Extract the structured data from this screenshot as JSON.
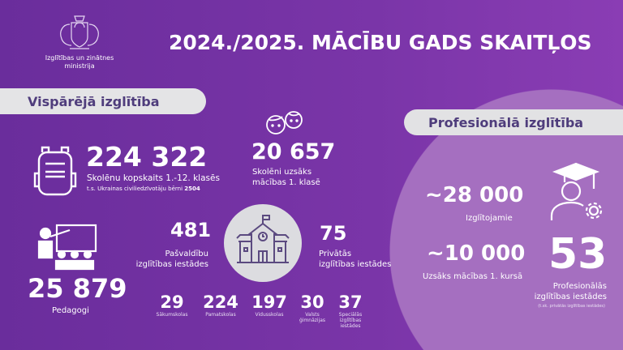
{
  "header": {
    "logo_text_1": "Izglītības un zinātnes",
    "logo_text_2": "ministrija",
    "title": "2024./2025. MĀCĪBU GADS SKAITĻOS"
  },
  "general": {
    "section_label": "Vispārējā izglītība",
    "students_total": "224 322",
    "students_label": "Skolēnu kopskaits 1.-12. klasēs",
    "ukraine_note": "t.s. Ukrainas civiliedzīvotāju bērni",
    "ukraine_count": "2504",
    "first_grade": "20 657",
    "first_grade_label_1": "Skolēni uzsāks",
    "first_grade_label_2": "mācības 1. klasē",
    "teachers": "25 879",
    "teachers_label": "Pedagogi",
    "municipal": "481",
    "municipal_label_1": "Pašvaldību",
    "municipal_label_2": "izglītības iestādes",
    "private": "75",
    "private_label_1": "Privātās",
    "private_label_2": "izglītības iestādes",
    "school_types": [
      {
        "value": "29",
        "label": "Sākumskolas"
      },
      {
        "value": "224",
        "label": "Pamatskolas"
      },
      {
        "value": "197",
        "label": "Vidusskolas"
      },
      {
        "value": "30",
        "label": "Valsts ģimnāzijas"
      },
      {
        "value": "37",
        "label": "Speciālās izglītības iestādes"
      }
    ]
  },
  "vocational": {
    "section_label": "Profesionālā izglītība",
    "learners": "~28 000",
    "learners_label": "Izglītojamie",
    "new_students": "~10 000",
    "new_students_label": "Uzsāks mācības 1. kursā",
    "institutions": "53",
    "institutions_label_1": "Profesionālās",
    "institutions_label_2": "izglītības iestādes",
    "institutions_note": "(t.sk. privātās izglītības iestādes)"
  },
  "colors": {
    "background": "#7a35a8",
    "circle": "#a56fc0",
    "pill": "#e4e4e6",
    "pill_text": "#4f3d7c"
  }
}
